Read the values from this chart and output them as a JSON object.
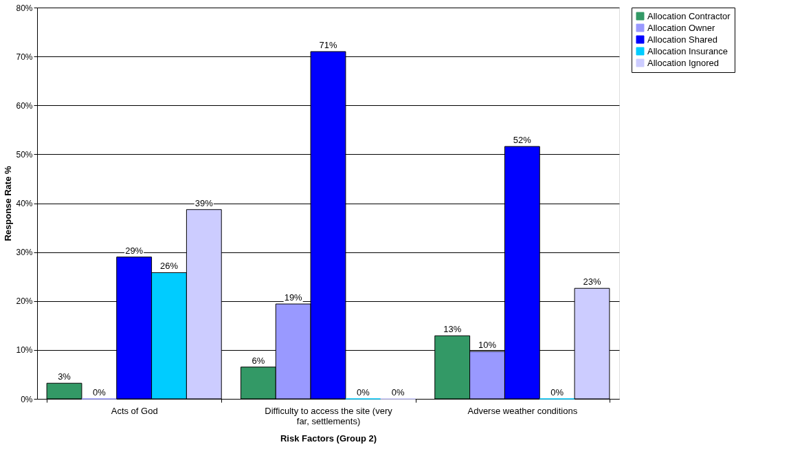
{
  "chart_data": {
    "type": "bar",
    "xlabel": "Risk Factors (Group 2)",
    "ylabel": "Response Rate %",
    "categories": [
      "Acts of God",
      "Difficulty to access the site (very far, settlements)",
      "Adverse weather conditions"
    ],
    "series": [
      {
        "name": "Allocation Contractor",
        "color": "#339966",
        "values": [
          3.2,
          6.5,
          12.9
        ],
        "value_labels": [
          "3%",
          "6%",
          "13%"
        ]
      },
      {
        "name": "Allocation Owner",
        "color": "#9999ff",
        "values": [
          0,
          19.4,
          9.7
        ],
        "value_labels": [
          "0%",
          "19%",
          "10%"
        ]
      },
      {
        "name": "Allocation Shared",
        "color": "#0000ff",
        "values": [
          29.0,
          71.0,
          51.6
        ],
        "value_labels": [
          "29%",
          "71%",
          "52%"
        ]
      },
      {
        "name": "Allocation Insurance",
        "color": "#00ccff",
        "values": [
          25.8,
          0,
          0
        ],
        "value_labels": [
          "26%",
          "0%",
          "0%"
        ]
      },
      {
        "name": "Allocation Ignored",
        "color": "#ccccff",
        "values": [
          38.7,
          0,
          22.6
        ],
        "value_labels": [
          "39%",
          "0%",
          "23%"
        ]
      }
    ],
    "ylim": [
      0,
      80
    ],
    "yticks": [
      {
        "value": 0,
        "label": "0%"
      },
      {
        "value": 10,
        "label": "10%"
      },
      {
        "value": 20,
        "label": "20%"
      },
      {
        "value": 30,
        "label": "30%"
      },
      {
        "value": 40,
        "label": "40%"
      },
      {
        "value": 50,
        "label": "50%"
      },
      {
        "value": 60,
        "label": "60%"
      },
      {
        "value": 70,
        "label": "70%"
      },
      {
        "value": 80,
        "label": "80%"
      }
    ],
    "grid": "y",
    "legend": "right"
  }
}
